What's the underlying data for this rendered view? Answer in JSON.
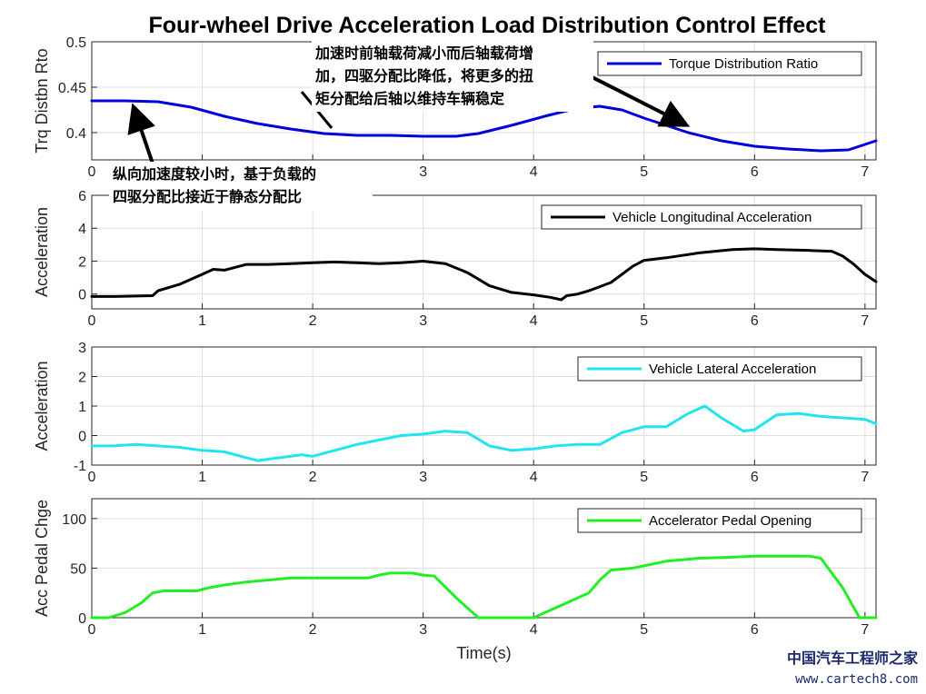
{
  "title": "Four-wheel Drive Acceleration Load Distribution Control Effect",
  "xlabel": "Time(s)",
  "watermark": {
    "line1": "中国汽车工程师之家",
    "line2": "www.cartech8.com",
    "color": "#1a2a6c"
  },
  "annotations": [
    {
      "lines": [
        "加速时前轴载荷减小而后轴载荷增",
        "加，四驱分配比降低，将更多的扭",
        "矩分配给后轴以维持车辆稳定"
      ]
    },
    {
      "lines": [
        "纵向加速度较小时，基于负载的",
        "四驱分配比接近于静态分配比"
      ]
    }
  ],
  "chart_data": [
    {
      "type": "line",
      "ylabel": "Trq Distbn Rto",
      "xlim": [
        0,
        7.1
      ],
      "ylim": [
        0.37,
        0.5
      ],
      "xticks": [
        0,
        1,
        2,
        3,
        4,
        5,
        6,
        7
      ],
      "yticks": [
        0.4,
        0.45,
        0.5
      ],
      "ytick_labels": [
        "0.4",
        "0.45",
        "0.5"
      ],
      "grid": true,
      "legend_position": "top-right",
      "series": [
        {
          "name": "Torque Distribution Ratio",
          "color": "#0000dd",
          "x": [
            0,
            0.3,
            0.6,
            0.9,
            1.2,
            1.5,
            1.8,
            2.1,
            2.4,
            2.7,
            3.0,
            3.3,
            3.5,
            3.8,
            4.1,
            4.4,
            4.6,
            4.8,
            5.0,
            5.2,
            5.4,
            5.7,
            6.0,
            6.3,
            6.6,
            6.85,
            7.1
          ],
          "y": [
            0.435,
            0.435,
            0.434,
            0.428,
            0.418,
            0.41,
            0.404,
            0.399,
            0.397,
            0.397,
            0.396,
            0.396,
            0.399,
            0.408,
            0.418,
            0.427,
            0.429,
            0.425,
            0.416,
            0.408,
            0.4,
            0.391,
            0.385,
            0.382,
            0.38,
            0.381,
            0.391
          ]
        }
      ]
    },
    {
      "type": "line",
      "ylabel": "Acceleration",
      "xlim": [
        0,
        7.1
      ],
      "ylim": [
        -0.9,
        6
      ],
      "xticks": [
        0,
        1,
        2,
        3,
        4,
        5,
        6,
        7
      ],
      "yticks": [
        0,
        2,
        4,
        6
      ],
      "ytick_labels": [
        "0",
        "2",
        "4",
        "6"
      ],
      "grid": true,
      "legend_position": "top-right",
      "series": [
        {
          "name": "Vehicle Longitudinal Acceleration",
          "color": "#000000",
          "x": [
            0,
            0.2,
            0.4,
            0.55,
            0.6,
            0.8,
            1.0,
            1.1,
            1.2,
            1.4,
            1.6,
            1.8,
            2.0,
            2.2,
            2.4,
            2.6,
            2.8,
            3.0,
            3.2,
            3.4,
            3.6,
            3.8,
            4.0,
            4.15,
            4.25,
            4.3,
            4.4,
            4.5,
            4.7,
            4.8,
            4.9,
            5.0,
            5.2,
            5.5,
            5.8,
            6.0,
            6.2,
            6.5,
            6.7,
            6.8,
            6.9,
            7.0,
            7.1
          ],
          "y": [
            -0.15,
            -0.15,
            -0.12,
            -0.1,
            0.2,
            0.6,
            1.2,
            1.5,
            1.45,
            1.8,
            1.8,
            1.85,
            1.9,
            1.95,
            1.9,
            1.85,
            1.9,
            2.0,
            1.85,
            1.3,
            0.5,
            0.1,
            -0.05,
            -0.2,
            -0.35,
            -0.1,
            0.0,
            0.2,
            0.7,
            1.2,
            1.7,
            2.05,
            2.2,
            2.5,
            2.7,
            2.75,
            2.7,
            2.65,
            2.6,
            2.3,
            1.8,
            1.2,
            0.75
          ]
        }
      ]
    },
    {
      "type": "line",
      "ylabel": "Acceleration",
      "xlim": [
        0,
        7.1
      ],
      "ylim": [
        -1,
        3
      ],
      "xticks": [
        0,
        1,
        2,
        3,
        4,
        5,
        6,
        7
      ],
      "yticks": [
        -1,
        0,
        1,
        2,
        3
      ],
      "ytick_labels": [
        "-1",
        "0",
        "1",
        "2",
        "3"
      ],
      "grid": true,
      "legend_position": "top-right",
      "series": [
        {
          "name": "Vehicle Lateral Acceleration",
          "color": "#22e4f0",
          "x": [
            0,
            0.2,
            0.4,
            0.6,
            0.8,
            1.0,
            1.2,
            1.4,
            1.5,
            1.7,
            1.9,
            2.0,
            2.2,
            2.4,
            2.6,
            2.8,
            3.0,
            3.2,
            3.4,
            3.6,
            3.8,
            4.0,
            4.2,
            4.4,
            4.6,
            4.8,
            5.0,
            5.2,
            5.4,
            5.55,
            5.7,
            5.9,
            6.0,
            6.2,
            6.4,
            6.6,
            6.8,
            7.0,
            7.1
          ],
          "y": [
            -0.35,
            -0.35,
            -0.3,
            -0.35,
            -0.4,
            -0.5,
            -0.55,
            -0.75,
            -0.85,
            -0.75,
            -0.65,
            -0.7,
            -0.5,
            -0.3,
            -0.15,
            0.0,
            0.05,
            0.15,
            0.1,
            -0.35,
            -0.5,
            -0.45,
            -0.35,
            -0.3,
            -0.3,
            0.1,
            0.3,
            0.3,
            0.75,
            1.0,
            0.6,
            0.15,
            0.2,
            0.7,
            0.75,
            0.65,
            0.6,
            0.55,
            0.4
          ]
        }
      ]
    },
    {
      "type": "line",
      "ylabel": "Acc Pedal Chge",
      "xlim": [
        0,
        7.1
      ],
      "ylim": [
        0,
        120
      ],
      "xticks": [
        0,
        1,
        2,
        3,
        4,
        5,
        6,
        7
      ],
      "yticks": [
        0,
        50,
        100
      ],
      "ytick_labels": [
        "0",
        "50",
        "100"
      ],
      "grid": true,
      "legend_position": "top-right",
      "series": [
        {
          "name": "Accelerator Pedal Opening",
          "color": "#22ee22",
          "x": [
            0,
            0.15,
            0.3,
            0.45,
            0.55,
            0.65,
            0.95,
            1.05,
            1.2,
            1.4,
            1.6,
            1.8,
            2.0,
            2.2,
            2.5,
            2.6,
            2.7,
            2.9,
            3.0,
            3.1,
            3.3,
            3.5,
            4.0,
            4.1,
            4.3,
            4.5,
            4.6,
            4.7,
            4.9,
            5.2,
            5.5,
            5.8,
            6.0,
            6.5,
            6.6,
            6.8,
            6.95,
            7.1
          ],
          "y": [
            0,
            0,
            5,
            15,
            25,
            27,
            27,
            30,
            33,
            36,
            38,
            40,
            40,
            40,
            40,
            43,
            45,
            45,
            43,
            42,
            20,
            0,
            0,
            5,
            15,
            25,
            38,
            48,
            50,
            57,
            60,
            61,
            62,
            62,
            60,
            30,
            0,
            0
          ]
        }
      ]
    }
  ]
}
